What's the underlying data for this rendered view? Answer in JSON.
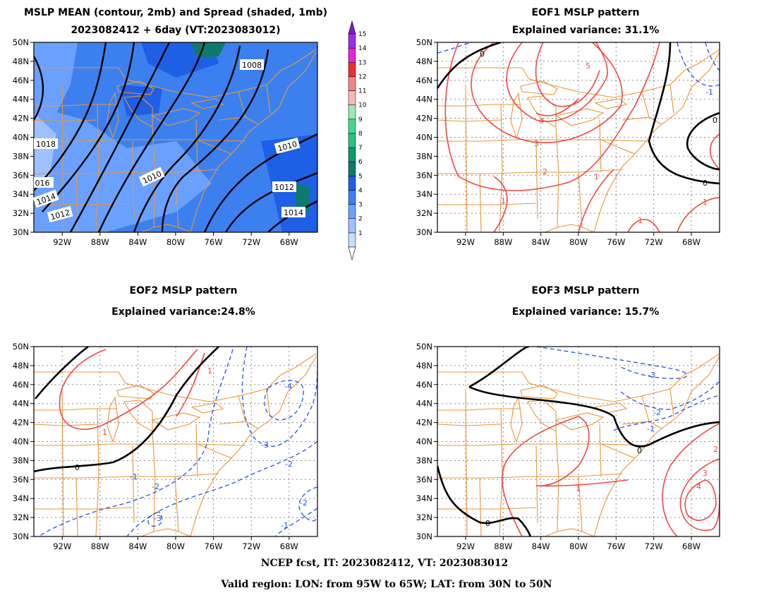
{
  "panels": [
    {
      "id": "mean",
      "title_lines": [
        "MSLP MEAN (contour, 2mb) and Spread (shaded, 1mb)",
        "2023082412 + 6day (VT:2023083012)"
      ]
    },
    {
      "id": "eof1",
      "title_lines": [
        "EOF1 MSLP pattern",
        "Explained variance: 31.1%"
      ]
    },
    {
      "id": "eof2",
      "title_lines": [
        "EOF2 MSLP pattern",
        "Explained variance:24.8%"
      ]
    },
    {
      "id": "eof3",
      "title_lines": [
        "EOF3 MSLP pattern",
        "Explained variance: 15.7%"
      ]
    }
  ],
  "axes": {
    "lon_ticks": [
      "92W",
      "88W",
      "84W",
      "80W",
      "76W",
      "72W",
      "68W"
    ],
    "lat_ticks": [
      "50N",
      "48N",
      "46N",
      "44N",
      "42N",
      "40N",
      "38N",
      "36N",
      "34N",
      "32N",
      "30N"
    ],
    "lon_range": [
      -95,
      -65
    ],
    "lat_range": [
      30,
      50
    ]
  },
  "colorbar": {
    "levels": [
      "1",
      "2",
      "3",
      "4",
      "5",
      "6",
      "7",
      "8",
      "9",
      "10",
      "11",
      "12",
      "13",
      "14",
      "15"
    ],
    "colors": [
      "#c6dbff",
      "#9ec2ff",
      "#6aa0ff",
      "#3c80f0",
      "#1e5fe6",
      "#0e7a6e",
      "#0b9a6a",
      "#2fbf7e",
      "#40d890",
      "#9ae8b4",
      "#f6b7b7",
      "#f48484",
      "#ee2e2e",
      "#e026e0",
      "#9a30e6"
    ]
  },
  "colors": {
    "coast": "#e8963a",
    "mean_contour": "#000000",
    "positive": "#f04848",
    "negative": "#2a4fe8",
    "zero": "#000000"
  },
  "mean_contour_labels": [
    "1008",
    "1010",
    "1010",
    "1012",
    "1014",
    "1018",
    "016",
    "1014",
    "1012"
  ],
  "eof1_labels": [
    "0",
    "5",
    "4",
    "3",
    "2",
    "1",
    "1",
    "1",
    "1",
    "-1",
    "0",
    "0"
  ],
  "eof2_labels": [
    "0",
    "1",
    "1",
    "-4",
    "-3",
    "-2",
    "-2",
    "-1",
    "-2",
    "-3",
    "-1"
  ],
  "eof3_labels": [
    "-3",
    "-2",
    "-1",
    "0",
    "0",
    "1",
    "2",
    "3",
    "4"
  ],
  "footer": {
    "line1": "NCEP fcst, IT: 2023082412, VT: 2023083012",
    "line2": "Valid region: LON: from 95W to 65W; LAT: from 30N to 50N"
  }
}
